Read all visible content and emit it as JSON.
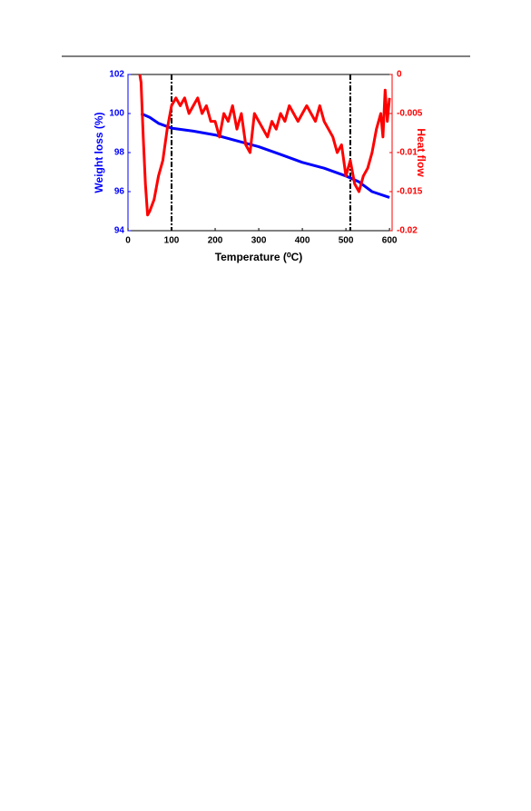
{
  "chart_data": {
    "type": "line",
    "xlabel": "Temperature (⁰C)",
    "ylabel": "Weight loss (%)",
    "y2label": "Heat flow",
    "xlim": [
      0,
      606
    ],
    "xticks": [
      0,
      100,
      200,
      300,
      400,
      500,
      600
    ],
    "ylim": [
      94,
      102
    ],
    "yticks": [
      94,
      96,
      98,
      100,
      102
    ],
    "y2lim": [
      -0.02,
      0
    ],
    "y2ticks": [
      -0.02,
      -0.015,
      -0.01,
      -0.005,
      0
    ],
    "vlines": [
      100,
      510
    ],
    "series": [
      {
        "name": "Weight loss",
        "color": "#0000ff",
        "axis": "y",
        "x": [
          30,
          50,
          70,
          100,
          150,
          200,
          250,
          300,
          350,
          400,
          450,
          500,
          530,
          560,
          600
        ],
        "values": [
          100,
          99.8,
          99.5,
          99.25,
          99.1,
          98.9,
          98.6,
          98.3,
          97.9,
          97.5,
          97.2,
          96.8,
          96.5,
          96.0,
          95.7
        ]
      },
      {
        "name": "Heat flow",
        "color": "#ff0000",
        "axis": "y2",
        "x": [
          27,
          30,
          35,
          40,
          45,
          50,
          60,
          70,
          80,
          90,
          100,
          110,
          120,
          130,
          140,
          150,
          160,
          170,
          180,
          190,
          200,
          210,
          220,
          230,
          240,
          250,
          260,
          270,
          280,
          290,
          300,
          310,
          320,
          330,
          340,
          350,
          360,
          370,
          380,
          390,
          400,
          410,
          420,
          430,
          440,
          450,
          460,
          470,
          480,
          490,
          500,
          510,
          520,
          530,
          540,
          550,
          560,
          570,
          580,
          585,
          590,
          595,
          600
        ],
        "values": [
          0,
          -0.001,
          -0.008,
          -0.014,
          -0.018,
          -0.0175,
          -0.016,
          -0.013,
          -0.011,
          -0.007,
          -0.004,
          -0.003,
          -0.004,
          -0.003,
          -0.005,
          -0.004,
          -0.003,
          -0.005,
          -0.004,
          -0.006,
          -0.006,
          -0.008,
          -0.005,
          -0.006,
          -0.004,
          -0.007,
          -0.005,
          -0.009,
          -0.01,
          -0.005,
          -0.006,
          -0.007,
          -0.008,
          -0.006,
          -0.007,
          -0.005,
          -0.006,
          -0.004,
          -0.005,
          -0.006,
          -0.005,
          -0.004,
          -0.005,
          -0.006,
          -0.004,
          -0.006,
          -0.007,
          -0.008,
          -0.01,
          -0.009,
          -0.013,
          -0.011,
          -0.014,
          -0.015,
          -0.013,
          -0.012,
          -0.01,
          -0.007,
          -0.005,
          -0.008,
          -0.002,
          -0.006,
          -0.003
        ]
      }
    ]
  }
}
